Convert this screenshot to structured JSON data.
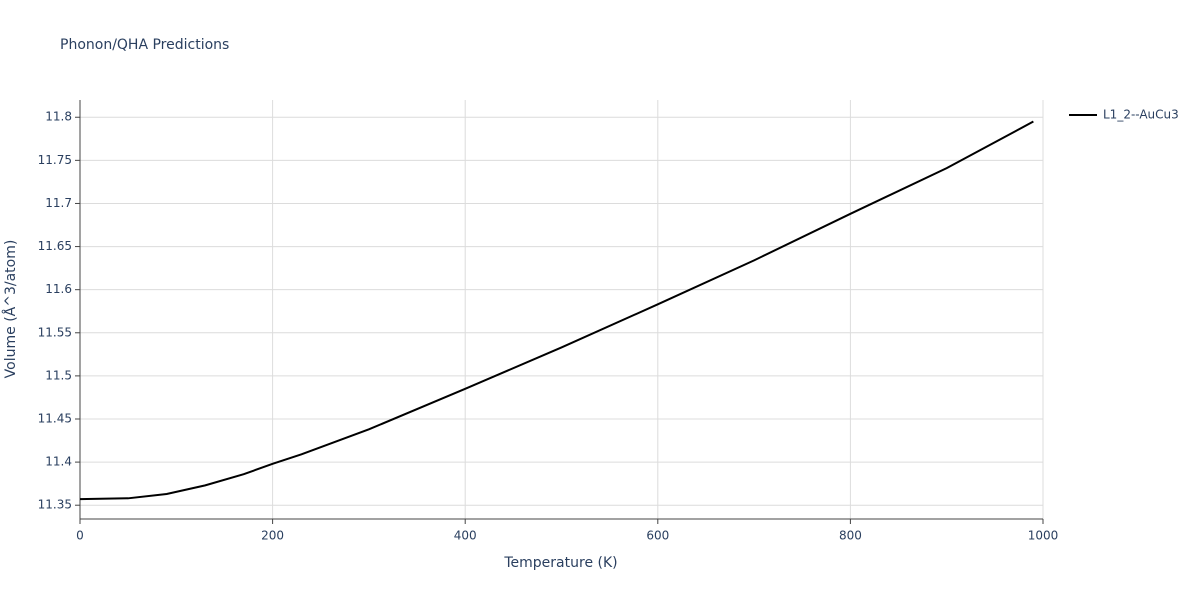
{
  "chart_data": {
    "type": "line",
    "title": "Phonon/QHA Predictions",
    "x_label": "Temperature (K)",
    "y_label": "Volume (Å^3/atom)",
    "x": [
      0,
      50,
      90,
      130,
      170,
      200,
      230,
      300,
      400,
      500,
      600,
      700,
      800,
      900,
      990
    ],
    "series": [
      {
        "name": "L1_2--AuCu3",
        "color": "#000000",
        "values": [
          11.357,
          11.358,
          11.363,
          11.373,
          11.386,
          11.398,
          11.409,
          11.438,
          11.485,
          11.533,
          11.583,
          11.634,
          11.688,
          11.741,
          11.795
        ]
      }
    ],
    "xlim": [
      0,
      1000
    ],
    "xticks": [
      0,
      200,
      400,
      600,
      800,
      1000
    ],
    "ylim": [
      11.334,
      11.82
    ],
    "yticks": [
      11.35,
      11.4,
      11.45,
      11.5,
      11.55,
      11.6,
      11.65,
      11.7,
      11.75,
      11.8
    ],
    "grid": true,
    "legend": "right"
  }
}
